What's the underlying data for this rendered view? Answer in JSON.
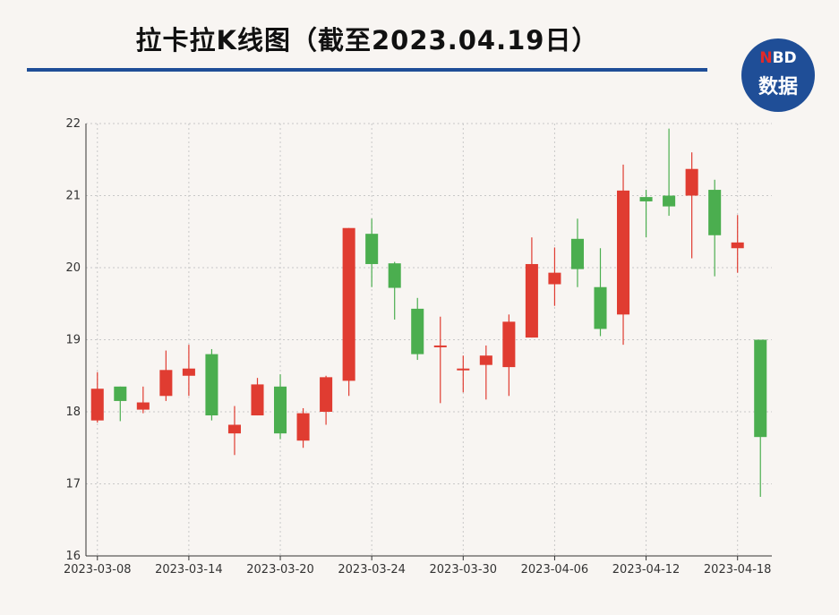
{
  "header": {
    "title": "拉卡拉K线图（截至2023.04.19日）",
    "badge_top_n": "N",
    "badge_top_rest": "BD",
    "badge_bottom": "数据"
  },
  "colors": {
    "up": "#e03c31",
    "down": "#4bae4f",
    "accent": "#1f4e97",
    "grid": "#c8c8c8",
    "axis": "#333333"
  },
  "chart_data": {
    "type": "candlestick",
    "title": "拉卡拉K线图（截至2023.04.19日）",
    "xlabel": "",
    "ylabel": "",
    "ylim": [
      16,
      22
    ],
    "yticks": [
      16,
      17,
      18,
      19,
      20,
      21,
      22
    ],
    "xticks": [
      "2023-03-08",
      "2023-03-14",
      "2023-03-20",
      "2023-03-24",
      "2023-03-30",
      "2023-04-06",
      "2023-04-12",
      "2023-04-18"
    ],
    "grid": true,
    "candles": [
      {
        "date": "2023-03-08",
        "open": 17.88,
        "close": 18.32,
        "low": 17.85,
        "high": 18.55
      },
      {
        "date": "2023-03-09",
        "open": 18.35,
        "close": 18.15,
        "low": 17.87,
        "high": 18.35
      },
      {
        "date": "2023-03-10",
        "open": 18.03,
        "close": 18.13,
        "low": 17.98,
        "high": 18.35
      },
      {
        "date": "2023-03-13",
        "open": 18.22,
        "close": 18.58,
        "low": 18.15,
        "high": 18.85
      },
      {
        "date": "2023-03-14",
        "open": 18.5,
        "close": 18.6,
        "low": 18.22,
        "high": 18.93
      },
      {
        "date": "2023-03-15",
        "open": 18.8,
        "close": 17.95,
        "low": 17.88,
        "high": 18.87
      },
      {
        "date": "2023-03-16",
        "open": 17.7,
        "close": 17.82,
        "low": 17.4,
        "high": 18.08
      },
      {
        "date": "2023-03-17",
        "open": 17.95,
        "close": 18.38,
        "low": 17.95,
        "high": 18.47
      },
      {
        "date": "2023-03-20",
        "open": 18.35,
        "close": 17.7,
        "low": 17.62,
        "high": 18.52
      },
      {
        "date": "2023-03-21",
        "open": 17.6,
        "close": 17.98,
        "low": 17.5,
        "high": 18.05
      },
      {
        "date": "2023-03-22",
        "open": 18.0,
        "close": 18.48,
        "low": 17.82,
        "high": 18.5
      },
      {
        "date": "2023-03-23",
        "open": 18.43,
        "close": 20.55,
        "low": 18.22,
        "high": 20.55
      },
      {
        "date": "2023-03-24",
        "open": 20.47,
        "close": 20.05,
        "low": 19.73,
        "high": 20.68
      },
      {
        "date": "2023-03-27",
        "open": 20.06,
        "close": 19.72,
        "low": 19.28,
        "high": 20.08
      },
      {
        "date": "2023-03-28",
        "open": 19.43,
        "close": 18.8,
        "low": 18.72,
        "high": 19.58
      },
      {
        "date": "2023-03-29",
        "open": 18.9,
        "close": 18.92,
        "low": 18.12,
        "high": 19.32
      },
      {
        "date": "2023-03-30",
        "open": 18.6,
        "close": 18.6,
        "low": 18.27,
        "high": 18.78
      },
      {
        "date": "2023-03-31",
        "open": 18.65,
        "close": 18.78,
        "low": 18.17,
        "high": 18.92
      },
      {
        "date": "2023-04-03",
        "open": 18.62,
        "close": 19.25,
        "low": 18.22,
        "high": 19.35
      },
      {
        "date": "2023-04-04",
        "open": 19.03,
        "close": 20.05,
        "low": 19.03,
        "high": 20.42
      },
      {
        "date": "2023-04-06",
        "open": 19.77,
        "close": 19.93,
        "low": 19.47,
        "high": 20.28
      },
      {
        "date": "2023-04-07",
        "open": 20.4,
        "close": 19.98,
        "low": 19.73,
        "high": 20.68
      },
      {
        "date": "2023-04-10",
        "open": 19.73,
        "close": 19.15,
        "low": 19.05,
        "high": 20.27
      },
      {
        "date": "2023-04-11",
        "open": 19.35,
        "close": 21.07,
        "low": 18.93,
        "high": 21.43
      },
      {
        "date": "2023-04-12",
        "open": 20.98,
        "close": 20.92,
        "low": 20.42,
        "high": 21.08
      },
      {
        "date": "2023-04-13",
        "open": 21.0,
        "close": 20.85,
        "low": 20.72,
        "high": 21.93
      },
      {
        "date": "2023-04-14",
        "open": 21.0,
        "close": 21.37,
        "low": 20.13,
        "high": 21.6
      },
      {
        "date": "2023-04-17",
        "open": 21.08,
        "close": 20.45,
        "low": 19.88,
        "high": 21.22
      },
      {
        "date": "2023-04-18",
        "open": 20.27,
        "close": 20.35,
        "low": 19.93,
        "high": 20.73
      },
      {
        "date": "2023-04-19",
        "open": 19.0,
        "close": 17.65,
        "low": 16.82,
        "high": 19.0
      }
    ]
  }
}
